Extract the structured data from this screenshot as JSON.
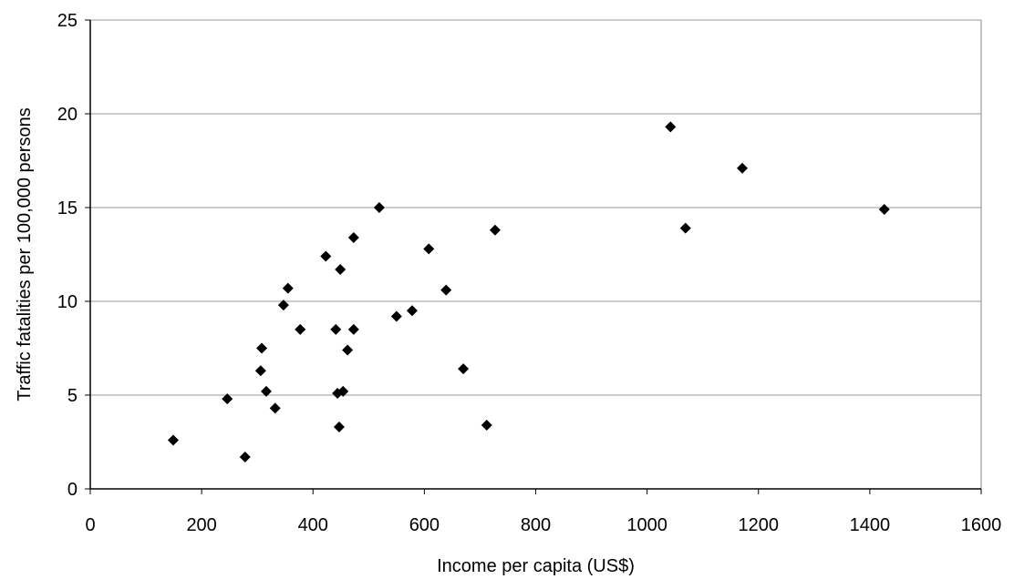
{
  "chart_data": {
    "type": "scatter",
    "x_label": "Income per capita (US$)",
    "y_label": "Traffic fatalities per 100,000 persons",
    "x": [
      149,
      246,
      278,
      308,
      306,
      316,
      332,
      347,
      355,
      377,
      423,
      441,
      444,
      454,
      447,
      449,
      462,
      473,
      473,
      519,
      550,
      578,
      608,
      639,
      670,
      712,
      727,
      1042,
      1069,
      1171,
      1426
    ],
    "values": [
      2.6,
      4.8,
      1.7,
      7.5,
      6.3,
      5.2,
      4.3,
      9.8,
      10.7,
      8.5,
      12.4,
      8.5,
      5.1,
      5.2,
      3.3,
      11.7,
      7.4,
      13.4,
      8.5,
      15.0,
      9.2,
      9.5,
      12.8,
      10.6,
      6.4,
      3.4,
      13.8,
      19.3,
      13.9,
      17.1,
      14.9
    ],
    "color": "#000000",
    "xlim": [
      0,
      1600
    ],
    "xticks": [
      0,
      200,
      400,
      600,
      800,
      1000,
      1200,
      1400,
      1600
    ],
    "ylim": [
      0,
      25
    ],
    "yticks": [
      0,
      5,
      10,
      15,
      20,
      25
    ],
    "grid": true
  }
}
